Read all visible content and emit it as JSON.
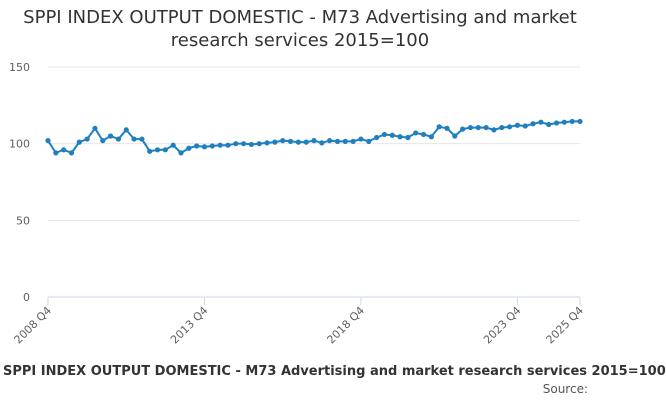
{
  "chart_data": {
    "type": "line",
    "title": "SPPI INDEX OUTPUT DOMESTIC - M73 Advertising and market research services 2015=100",
    "xlabel": "",
    "ylabel": "",
    "ylim": [
      0,
      150
    ],
    "yticks": [
      0,
      50,
      100,
      150
    ],
    "xticks": [
      "2008 Q4",
      "2013 Q4",
      "2018 Q4",
      "2023 Q4",
      "2025 Q4"
    ],
    "grid": true,
    "legend_position": "bottom",
    "legend_text": "SPPI INDEX OUTPUT DOMESTIC - M73 Advertising and market research services 2015=100",
    "source_text": "Source:",
    "line_color": "#1f7fbf",
    "x": [
      "2008 Q4",
      "2009 Q1",
      "2009 Q2",
      "2009 Q3",
      "2009 Q4",
      "2010 Q1",
      "2010 Q2",
      "2010 Q3",
      "2010 Q4",
      "2011 Q1",
      "2011 Q2",
      "2011 Q3",
      "2011 Q4",
      "2012 Q1",
      "2012 Q2",
      "2012 Q3",
      "2012 Q4",
      "2013 Q1",
      "2013 Q2",
      "2013 Q3",
      "2013 Q4",
      "2014 Q1",
      "2014 Q2",
      "2014 Q3",
      "2014 Q4",
      "2015 Q1",
      "2015 Q2",
      "2015 Q3",
      "2015 Q4",
      "2016 Q1",
      "2016 Q2",
      "2016 Q3",
      "2016 Q4",
      "2017 Q1",
      "2017 Q2",
      "2017 Q3",
      "2017 Q4",
      "2018 Q1",
      "2018 Q2",
      "2018 Q3",
      "2018 Q4",
      "2019 Q1",
      "2019 Q2",
      "2019 Q3",
      "2019 Q4",
      "2020 Q1",
      "2020 Q2",
      "2020 Q3",
      "2020 Q4",
      "2021 Q1",
      "2021 Q2",
      "2021 Q3",
      "2021 Q4",
      "2022 Q1",
      "2022 Q2",
      "2022 Q3",
      "2022 Q4",
      "2023 Q1",
      "2023 Q2",
      "2023 Q3",
      "2023 Q4",
      "2024 Q1",
      "2024 Q2",
      "2024 Q3",
      "2024 Q4",
      "2025 Q1",
      "2025 Q2",
      "2025 Q3",
      "2025 Q4"
    ],
    "series": [
      {
        "values": [
          102,
          94,
          96,
          94,
          101,
          103,
          110,
          102,
          105,
          103,
          109,
          103,
          103,
          95,
          96,
          96,
          99,
          94,
          97,
          98.5,
          98,
          98.5,
          99,
          99,
          100,
          100,
          99.5,
          100,
          100.5,
          101,
          102,
          101.5,
          101,
          101,
          102,
          100.5,
          102,
          101.5,
          101.5,
          101.5,
          103,
          101.5,
          104,
          106,
          105.5,
          104.5,
          104,
          107,
          106,
          104.5,
          111,
          110,
          105,
          109.5,
          110.5,
          110.5,
          110.5,
          109,
          110.5,
          111,
          112,
          111.5,
          113,
          114,
          112.5,
          113.5,
          114,
          114.5,
          114.5
        ]
      }
    ]
  }
}
